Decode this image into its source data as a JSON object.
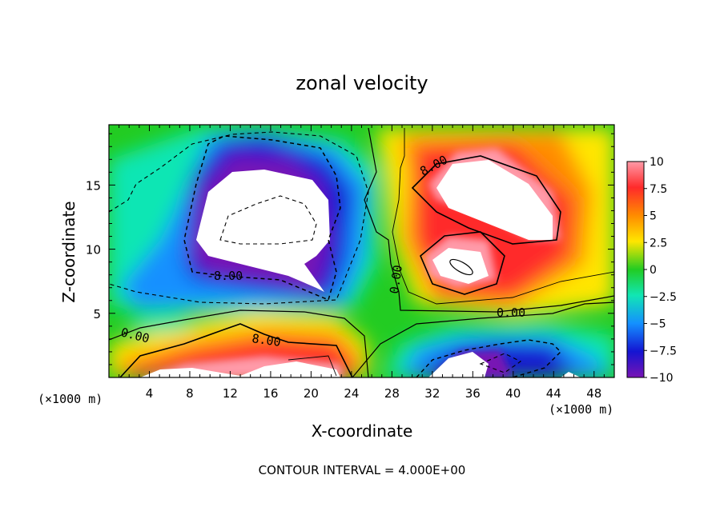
{
  "chart_data": {
    "type": "heatmap",
    "title": "zonal velocity",
    "xlabel": "X-coordinate",
    "ylabel": "Z-coordinate",
    "x_unit_left": "(×1000 m)",
    "x_unit_right": "(×1000 m)",
    "footer": "CONTOUR INTERVAL = 4.000E+00",
    "xlim": [
      0,
      50
    ],
    "ylim": [
      0,
      19.7
    ],
    "x_ticks": [
      4,
      8,
      12,
      16,
      20,
      24,
      28,
      32,
      36,
      40,
      44,
      48
    ],
    "y_ticks": [
      5,
      10,
      15
    ],
    "colorbar": {
      "ticks": [
        "10",
        "7.5",
        "5",
        "2.5",
        "0",
        "−2.5",
        "−5",
        "−7.5",
        "−10"
      ],
      "range": [
        -10,
        10
      ],
      "colors": [
        "#ff9aa8",
        "#ff1e1e",
        "#ffa500",
        "#ffe400",
        "#22cc22",
        "#11e6b4",
        "#14a0ff",
        "#1414d2",
        "#7814b4"
      ]
    },
    "contour_labels": [
      {
        "text": "8.00",
        "x": 32.5,
        "y": 16.3
      },
      {
        "text": "0.00",
        "x": 28.3,
        "y": 8.3
      },
      {
        "text": "0.00",
        "x": 39.0,
        "y": 5.2
      },
      {
        "text": "0.00",
        "x": 3.0,
        "y": 3.3
      },
      {
        "text": "-8.00",
        "x": 10.5,
        "y": 8.2
      },
      {
        "text": "8.00",
        "x": 14.5,
        "y": 2.7
      }
    ]
  }
}
